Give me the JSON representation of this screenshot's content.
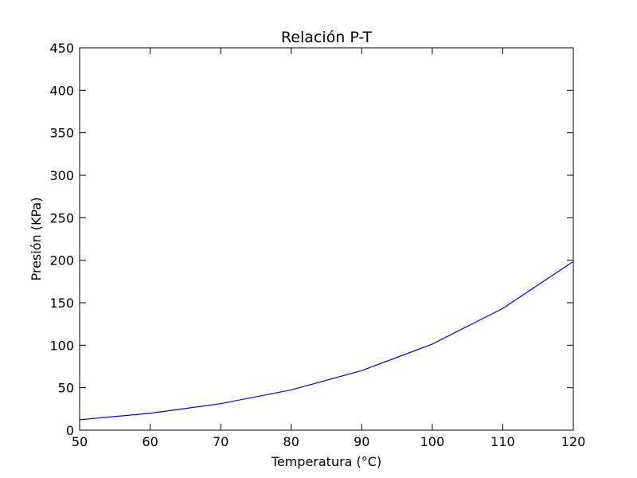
{
  "chart_data": {
    "type": "line",
    "title": "Relación P-T",
    "xlabel": "Temperatura (°C)",
    "ylabel": "Presión (KPa)",
    "xlim": [
      50,
      120
    ],
    "ylim": [
      0,
      450
    ],
    "xticks": [
      50,
      60,
      70,
      80,
      90,
      100,
      110,
      120
    ],
    "yticks": [
      0,
      50,
      100,
      150,
      200,
      250,
      300,
      350,
      400,
      450
    ],
    "grid": false,
    "series": [
      {
        "color": "#0000ff",
        "x": [
          50,
          60,
          70,
          80,
          90,
          100,
          110,
          120
        ],
        "y": [
          12.3,
          19.9,
          31.2,
          47.4,
          70.1,
          101.3,
          143.3,
          198.5
        ]
      }
    ]
  }
}
